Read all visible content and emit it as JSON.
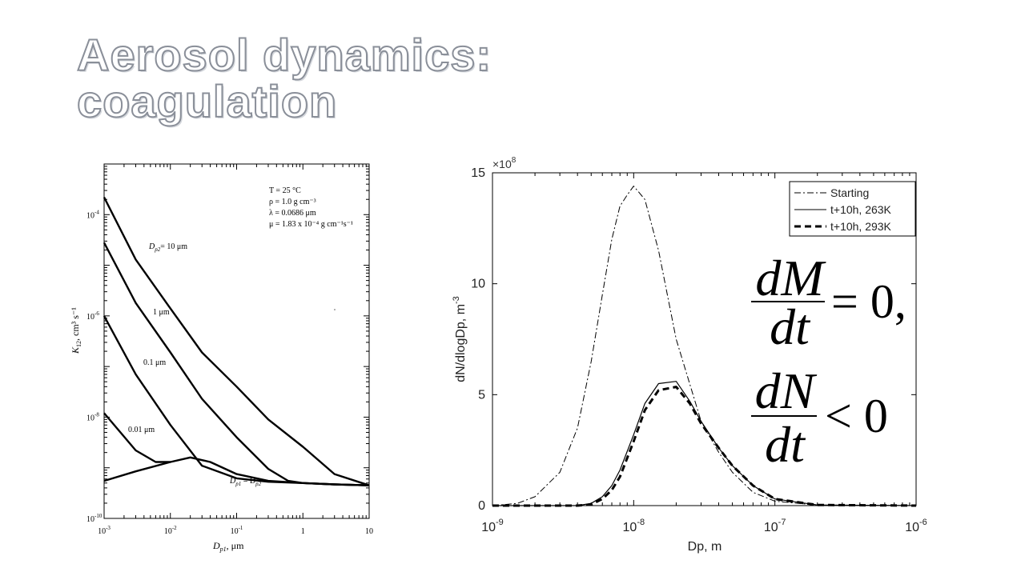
{
  "slide": {
    "title_line1": "Aerosol dynamics:",
    "title_line2": "coagulation"
  },
  "chart_data": [
    {
      "type": "line",
      "x_scale": "log",
      "y_scale": "log",
      "xlim": [
        0.001,
        10
      ],
      "ylim": [
        1e-10,
        0.001
      ],
      "xlabel_main": "D",
      "xlabel_sub": "p1",
      "xlabel_unit": ",  μm",
      "ylabel_main": "K",
      "ylabel_sub": "12",
      "ylabel_unit": ",  cm³ s⁻¹",
      "x_ticks": [
        {
          "value": 0.001,
          "base": "10",
          "exp": "-3"
        },
        {
          "value": 0.01,
          "base": "10",
          "exp": "-2"
        },
        {
          "value": 0.1,
          "base": "10",
          "exp": "-1"
        },
        {
          "value": 1,
          "base": "1",
          "exp": ""
        },
        {
          "value": 10,
          "base": "10",
          "exp": ""
        }
      ],
      "y_ticks": [
        {
          "value": 1e-10,
          "base": "10",
          "exp": "-10"
        },
        {
          "value": 1e-08,
          "base": "10",
          "exp": "-8"
        },
        {
          "value": 1e-06,
          "base": "10",
          "exp": "-6"
        },
        {
          "value": 0.0001,
          "base": "10",
          "exp": "-4"
        }
      ],
      "conditions": [
        "T = 25 °C",
        "ρ = 1.0 g cm⁻³",
        "λ = 0.0686 μm",
        "μ = 1.83 x 10⁻⁴ g cm⁻¹s⁻¹"
      ],
      "series": [
        {
          "name": "Dp2 = 10 μm",
          "x": [
            0.001,
            0.003,
            0.01,
            0.03,
            0.1,
            0.3,
            1,
            3,
            10
          ],
          "y": [
            0.00022,
            1.3e-05,
            1.4e-06,
            1.9e-07,
            4e-08,
            9e-09,
            2.6e-09,
            7.5e-10,
            4.5e-10
          ]
        },
        {
          "name": "1 μm",
          "x": [
            0.001,
            0.003,
            0.01,
            0.03,
            0.1,
            0.3,
            0.6,
            1,
            3,
            10
          ],
          "y": [
            2.8e-05,
            1.8e-06,
            1.9e-07,
            2.3e-08,
            4e-09,
            9.5e-10,
            5.5e-10,
            5e-10,
            4.7e-10,
            4.5e-10
          ]
        },
        {
          "name": "0.1 μm",
          "x": [
            0.001,
            0.003,
            0.01,
            0.03,
            0.1,
            0.3,
            1,
            3,
            10
          ],
          "y": [
            1e-06,
            7e-08,
            7e-09,
            1.1e-09,
            6.2e-10,
            5.3e-10,
            5e-10,
            4.7e-10,
            4.5e-10
          ]
        },
        {
          "name": "0.01 μm",
          "x": [
            0.001,
            0.003,
            0.006,
            0.01
          ],
          "y": [
            1.2e-08,
            2.2e-09,
            1.3e-09,
            1.3e-09
          ]
        },
        {
          "name": "Dp1 = Dp2",
          "x": [
            0.001,
            0.003,
            0.01,
            0.02,
            0.04,
            0.1,
            0.3,
            1,
            3,
            10
          ],
          "y": [
            5.5e-10,
            8.5e-10,
            1.3e-09,
            1.6e-09,
            1.3e-09,
            7.5e-10,
            5.5e-10,
            5e-10,
            4.7e-10,
            4.5e-10
          ]
        }
      ],
      "curve_labels": [
        {
          "main": "D",
          "sub": "p2",
          "rest": "= 10 μm"
        },
        {
          "main": "",
          "sub": "",
          "rest": "1 μm"
        },
        {
          "main": "",
          "sub": "",
          "rest": "0.1  μm"
        },
        {
          "main": "",
          "sub": "",
          "rest": "0.01  μm"
        },
        {
          "main": "D",
          "sub": "p1",
          "rest": " = D",
          "sub2": "p2"
        }
      ]
    },
    {
      "type": "line",
      "x_scale": "log",
      "xlim": [
        1e-09,
        1e-06
      ],
      "ylim": [
        0,
        15
      ],
      "y_multiplier": "×10",
      "y_multiplier_exp": "8",
      "xlabel": "Dp, m",
      "ylabel_text": "dN/dlogDp, m",
      "ylabel_exp": "-3",
      "x_ticks": [
        {
          "value": 1e-09,
          "base": "10",
          "exp": "-9"
        },
        {
          "value": 1e-08,
          "base": "10",
          "exp": "-8"
        },
        {
          "value": 1e-07,
          "base": "10",
          "exp": "-7"
        },
        {
          "value": 1e-06,
          "base": "10",
          "exp": "-6"
        }
      ],
      "y_ticks": [
        0,
        5,
        10,
        15
      ],
      "legend_position": "top-right",
      "series": [
        {
          "name": "Starting",
          "style": "dashdot",
          "x": [
            1e-09,
            1.5e-09,
            2e-09,
            3e-09,
            4e-09,
            5e-09,
            6e-09,
            7e-09,
            8e-09,
            9e-09,
            1e-08,
            1.2e-08,
            1.5e-08,
            2e-08,
            3e-08,
            4e-08,
            5e-08,
            7e-08,
            1e-07,
            2e-07,
            1e-06
          ],
          "y": [
            0,
            0.1,
            0.4,
            1.5,
            3.5,
            6.5,
            9.5,
            12,
            13.5,
            14,
            14.4,
            13.8,
            11.5,
            7.5,
            3.8,
            2.4,
            1.5,
            0.6,
            0.2,
            0.02,
            0
          ]
        },
        {
          "name": "t+10h, 263K",
          "style": "solid",
          "x": [
            1e-09,
            4e-09,
            5e-09,
            6e-09,
            7e-09,
            8e-09,
            1e-08,
            1.2e-08,
            1.5e-08,
            2e-08,
            2.5e-08,
            3e-08,
            4e-08,
            5e-08,
            7e-08,
            1e-07,
            2e-07,
            1e-06
          ],
          "y": [
            0,
            0,
            0.1,
            0.4,
            0.9,
            1.6,
            3.2,
            4.6,
            5.5,
            5.6,
            4.7,
            3.8,
            2.6,
            1.8,
            0.9,
            0.3,
            0.03,
            0
          ]
        },
        {
          "name": "t+10h, 293K",
          "style": "dashed",
          "x": [
            1e-09,
            4e-09,
            5e-09,
            6e-09,
            7e-09,
            8e-09,
            1e-08,
            1.2e-08,
            1.5e-08,
            2e-08,
            2.5e-08,
            3e-08,
            4e-08,
            5e-08,
            7e-08,
            1e-07,
            2e-07,
            1e-06
          ],
          "y": [
            0,
            0,
            0.05,
            0.3,
            0.7,
            1.3,
            2.9,
            4.3,
            5.2,
            5.35,
            4.6,
            3.7,
            2.6,
            1.8,
            0.9,
            0.3,
            0.03,
            0
          ]
        }
      ]
    }
  ],
  "equations": {
    "eq1_numerator": "dM",
    "eq1_denominator": "dt",
    "eq1_rest": "= 0,",
    "eq2_numerator": "dN",
    "eq2_denominator": "dt",
    "eq2_rest": "< 0"
  }
}
